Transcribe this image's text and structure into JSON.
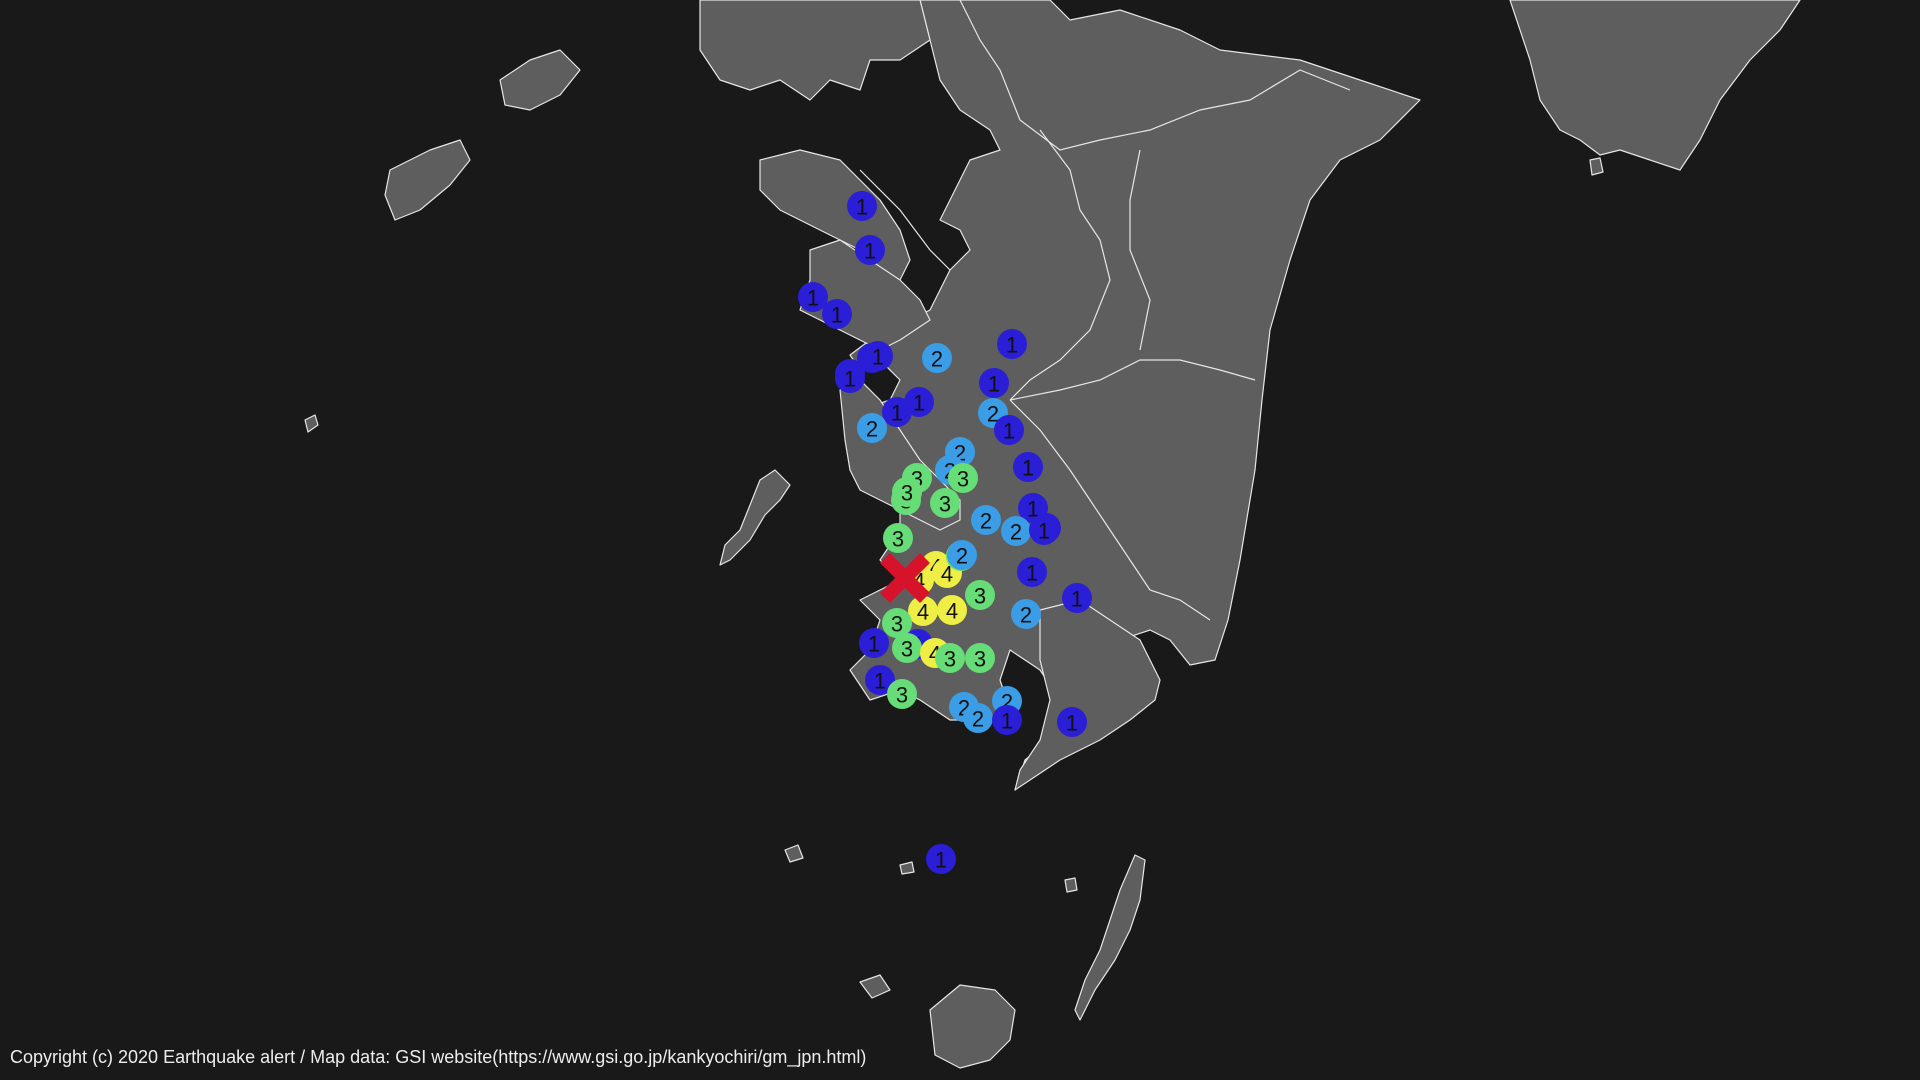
{
  "map": {
    "title": "",
    "legend_colors": {
      "1": "#2a1ed6",
      "2": "#3a9de6",
      "3": "#66dd77",
      "4": "#eeee44"
    },
    "epicenter_color": "#d6132a",
    "epicenter_icon": "x-mark-icon",
    "intensities": [
      1,
      1,
      1,
      1,
      1,
      1,
      1,
      1,
      2,
      1,
      1,
      1,
      1,
      2,
      2,
      1,
      1,
      2,
      2,
      3,
      3,
      3,
      3,
      3,
      1,
      2,
      2,
      1,
      1,
      3,
      4,
      4,
      3,
      2,
      1,
      3,
      4,
      4,
      4,
      2,
      1,
      3,
      1,
      1,
      3,
      4,
      3,
      3,
      1,
      3,
      2,
      2,
      2,
      1,
      1,
      1
    ]
  },
  "footer": {
    "copyright": "Copyright (c) 2020 Earthquake alert / Map data: GSI website(https://www.gsi.go.jp/kankyochiri/gm_jpn.html)"
  }
}
